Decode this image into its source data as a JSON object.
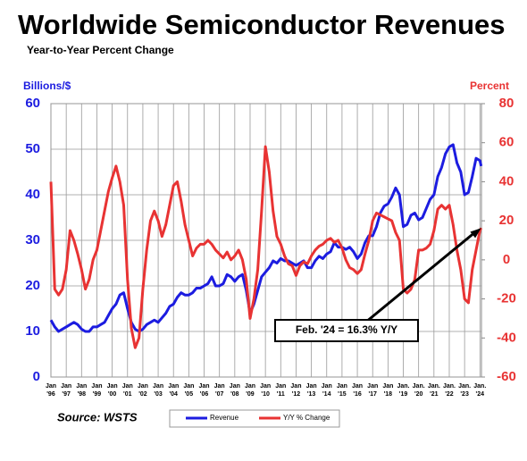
{
  "chart_data": {
    "type": "line",
    "title": "Worldwide Semiconductor Revenues",
    "subtitle": "Year-to-Year Percent Change",
    "y_axis_label": "Billions/$",
    "y2_axis_label": "Percent",
    "source": "Source: WSTS",
    "annotation": "Feb. '24 = 16.3% Y/Y",
    "grid": true,
    "x": [
      1996,
      1996.25,
      1996.5,
      1996.75,
      1997,
      1997.25,
      1997.5,
      1997.75,
      1998,
      1998.25,
      1998.5,
      1998.75,
      1999,
      1999.25,
      1999.5,
      1999.75,
      2000,
      2000.25,
      2000.5,
      2000.75,
      2001,
      2001.25,
      2001.5,
      2001.75,
      2002,
      2002.25,
      2002.5,
      2002.75,
      2003,
      2003.25,
      2003.5,
      2003.75,
      2004,
      2004.25,
      2004.5,
      2004.75,
      2005,
      2005.25,
      2005.5,
      2005.75,
      2006,
      2006.25,
      2006.5,
      2006.75,
      2007,
      2007.25,
      2007.5,
      2007.75,
      2008,
      2008.25,
      2008.5,
      2008.75,
      2009,
      2009.25,
      2009.5,
      2009.75,
      2010,
      2010.25,
      2010.5,
      2010.75,
      2011,
      2011.25,
      2011.5,
      2011.75,
      2012,
      2012.25,
      2012.5,
      2012.75,
      2013,
      2013.25,
      2013.5,
      2013.75,
      2014,
      2014.25,
      2014.5,
      2014.75,
      2015,
      2015.25,
      2015.5,
      2015.75,
      2016,
      2016.25,
      2016.5,
      2016.75,
      2017,
      2017.25,
      2017.5,
      2017.75,
      2018,
      2018.25,
      2018.5,
      2018.75,
      2019,
      2019.25,
      2019.5,
      2019.75,
      2020,
      2020.25,
      2020.5,
      2020.75,
      2021,
      2021.25,
      2021.5,
      2021.75,
      2022,
      2022.25,
      2022.5,
      2022.75,
      2023,
      2023.25,
      2023.5,
      2023.75,
      2024,
      2024.083
    ],
    "series": [
      {
        "name": "Revenue",
        "color": "#1c1ce0",
        "axis": "y",
        "values": [
          12.5,
          11,
          10,
          10.5,
          11,
          11.5,
          12,
          11.5,
          10.5,
          10,
          10,
          11,
          11,
          11.5,
          12,
          13.5,
          15,
          16,
          18,
          18.5,
          15,
          12,
          10.5,
          10,
          10.5,
          11.5,
          12,
          12.5,
          12,
          13,
          14,
          15.5,
          16,
          17.5,
          18.5,
          18,
          18,
          18.5,
          19.5,
          19.5,
          20,
          20.5,
          22,
          20,
          20,
          20.5,
          22.5,
          22,
          21,
          22,
          22.5,
          19,
          14,
          16,
          19,
          22,
          23,
          24,
          25.5,
          25,
          26,
          25.5,
          25.5,
          25,
          24.5,
          25,
          25.5,
          24,
          24,
          25.5,
          26.5,
          26,
          27,
          27.5,
          29.5,
          28.5,
          28.5,
          28,
          28.5,
          27.5,
          26,
          27,
          29.5,
          31,
          31,
          33,
          36,
          37.5,
          38,
          39.5,
          41.5,
          40,
          33,
          33.5,
          35.5,
          36,
          34.5,
          35,
          37,
          39,
          40,
          44,
          46,
          49,
          50.5,
          51,
          47,
          45,
          40,
          40.5,
          44,
          48,
          47.5,
          46.3
        ]
      },
      {
        "name": "Y/Y % Change",
        "color": "#e83333",
        "axis": "y2",
        "values": [
          40,
          -15,
          -18,
          -15,
          -5,
          15,
          10,
          3,
          -5,
          -15,
          -10,
          0,
          5,
          15,
          25,
          35,
          42,
          48,
          40,
          28,
          -10,
          -35,
          -45,
          -40,
          -15,
          5,
          20,
          25,
          20,
          12,
          18,
          28,
          38,
          40,
          30,
          18,
          10,
          2,
          6,
          8,
          8,
          10,
          8,
          5,
          3,
          1,
          4,
          0,
          2,
          5,
          0,
          -10,
          -30,
          -20,
          -5,
          25,
          58,
          45,
          25,
          12,
          8,
          2,
          -2,
          -3,
          -8,
          -3,
          -1,
          -2,
          2,
          5,
          7,
          8,
          10,
          11,
          9,
          10,
          6,
          0,
          -4,
          -5,
          -7,
          -5,
          3,
          10,
          20,
          24,
          23,
          22,
          21,
          20,
          14,
          10,
          -15,
          -17,
          -15,
          -10,
          5,
          5,
          6,
          8,
          15,
          26,
          28,
          26,
          28,
          18,
          5,
          -5,
          -20,
          -22,
          -5,
          5,
          15,
          16.3
        ]
      }
    ],
    "xlim": [
      1996,
      2024.1
    ],
    "xticks": [
      {
        "value": 1996,
        "label": "Jan '96"
      },
      {
        "value": 1997,
        "label": "Jan '97"
      },
      {
        "value": 1998,
        "label": "Jan '98"
      },
      {
        "value": 1999,
        "label": "Jan '99"
      },
      {
        "value": 2000,
        "label": "Jan '00"
      },
      {
        "value": 2001,
        "label": "Jan '01"
      },
      {
        "value": 2002,
        "label": "Jan '02"
      },
      {
        "value": 2003,
        "label": "Jan '03"
      },
      {
        "value": 2004,
        "label": "Jan '04"
      },
      {
        "value": 2005,
        "label": "Jan '05"
      },
      {
        "value": 2006,
        "label": "Jan '06"
      },
      {
        "value": 2007,
        "label": "Jan '07"
      },
      {
        "value": 2008,
        "label": "Jan '08"
      },
      {
        "value": 2009,
        "label": "Jan '09"
      },
      {
        "value": 2010,
        "label": "Jan '10"
      },
      {
        "value": 2011,
        "label": "Jan '11"
      },
      {
        "value": 2012,
        "label": "Jan '12"
      },
      {
        "value": 2013,
        "label": "Jan '13"
      },
      {
        "value": 2014,
        "label": "Jan '14"
      },
      {
        "value": 2015,
        "label": "Jan '15"
      },
      {
        "value": 2016,
        "label": "Jan '16"
      },
      {
        "value": 2017,
        "label": "Jan '17"
      },
      {
        "value": 2018,
        "label": "Jan '18"
      },
      {
        "value": 2019,
        "label": "Jan. '19"
      },
      {
        "value": 2020,
        "label": "Jan. '20"
      },
      {
        "value": 2021,
        "label": "Jan. '21"
      },
      {
        "value": 2022,
        "label": "Jan. '22"
      },
      {
        "value": 2023,
        "label": "Jan. '23"
      },
      {
        "value": 2024,
        "label": "Jan. '24"
      }
    ],
    "ylim": [
      0,
      60
    ],
    "yticks": [
      0,
      10,
      20,
      30,
      40,
      50,
      60
    ],
    "y2lim": [
      -60,
      80
    ],
    "y2ticks": [
      -60,
      -40,
      -20,
      0,
      20,
      40,
      60,
      80
    ]
  }
}
